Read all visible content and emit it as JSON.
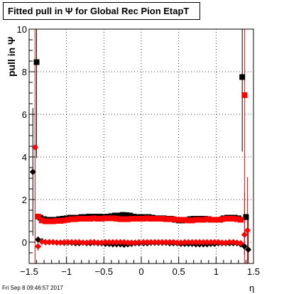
{
  "title": "Fitted pull in  Ψ  for Global Rec Pion EtapT",
  "footer": "Fri Sep  8 09:46:57 2017",
  "chart_data": {
    "type": "scatter",
    "title": "Fitted pull in  Ψ  for Global Rec Pion EtapT",
    "xlabel": "η",
    "ylabel": "pull in  Ψ",
    "xlim": [
      -1.5,
      1.5
    ],
    "ylim": [
      -1,
      10
    ],
    "xticks": [
      -1.5,
      -1,
      -0.5,
      0,
      0.5,
      1,
      1.5
    ],
    "xtick_labels": [
      "−1.5",
      "−1",
      "−0.5",
      "0",
      "0.5",
      "1",
      "1.5"
    ],
    "yticks": [
      0,
      2,
      4,
      6,
      8,
      10
    ],
    "ytick_labels": [
      "0",
      "2",
      "4",
      "6",
      "8",
      "10"
    ],
    "grid": true,
    "colors": {
      "black_series": "#000000",
      "red_series": "#ff0000"
    },
    "series": [
      {
        "color": "#000000",
        "marker": "square",
        "x": [
          -1.4,
          -1.35,
          -1.3,
          -1.25,
          -1.2,
          -1.15,
          -1.1,
          -1.05,
          -1.0,
          -0.95,
          -0.9,
          -0.85,
          -0.8,
          -0.75,
          -0.7,
          -0.65,
          -0.6,
          -0.55,
          -0.5,
          -0.45,
          -0.4,
          -0.35,
          -0.3,
          -0.25,
          -0.2,
          -0.15,
          -0.1,
          -0.05,
          0.0,
          0.05,
          0.1,
          0.15,
          0.2,
          0.25,
          0.3,
          0.35,
          0.4,
          0.45,
          0.5,
          0.55,
          0.6,
          0.65,
          0.7,
          0.75,
          0.8,
          0.85,
          0.9,
          0.95,
          1.0,
          1.05,
          1.1,
          1.15,
          1.2,
          1.25,
          1.3,
          1.35,
          1.4
        ],
        "y": [
          8.45,
          1.15,
          1.08,
          1.05,
          1.05,
          1.05,
          1.08,
          1.1,
          1.12,
          1.15,
          1.15,
          1.15,
          1.18,
          1.18,
          1.2,
          1.2,
          1.2,
          1.2,
          1.18,
          1.2,
          1.22,
          1.25,
          1.25,
          1.28,
          1.27,
          1.25,
          1.2,
          1.18,
          1.18,
          1.18,
          1.18,
          1.15,
          1.12,
          1.12,
          1.12,
          1.1,
          1.1,
          1.05,
          1.02,
          1.02,
          1.05,
          1.08,
          1.1,
          1.1,
          1.1,
          1.1,
          1.08,
          1.05,
          1.05,
          1.05,
          1.12,
          1.15,
          1.15,
          1.15,
          1.12,
          7.75,
          1.18
        ],
        "yerr": [
          4.5,
          0.15,
          0.1,
          0.08,
          0.08,
          0.08,
          0.08,
          0.08,
          0.08,
          0.08,
          0.08,
          0.08,
          0.08,
          0.08,
          0.08,
          0.08,
          0.08,
          0.08,
          0.08,
          0.08,
          0.08,
          0.08,
          0.08,
          0.08,
          0.08,
          0.08,
          0.08,
          0.08,
          0.08,
          0.08,
          0.08,
          0.08,
          0.08,
          0.08,
          0.08,
          0.08,
          0.08,
          0.08,
          0.08,
          0.08,
          0.08,
          0.08,
          0.08,
          0.08,
          0.08,
          0.08,
          0.08,
          0.08,
          0.08,
          0.08,
          0.08,
          0.08,
          0.08,
          0.08,
          0.1,
          3.5,
          0.15
        ]
      },
      {
        "color": "#000000",
        "marker": "diamond",
        "x": [
          -1.45,
          -1.38,
          -1.33,
          -1.28,
          -1.23,
          -1.18,
          -1.13,
          -1.08,
          -1.03,
          -0.98,
          -0.93,
          -0.88,
          -0.83,
          -0.78,
          -0.73,
          -0.68,
          -0.63,
          -0.58,
          -0.53,
          -0.48,
          -0.43,
          -0.38,
          -0.33,
          -0.28,
          -0.23,
          -0.18,
          -0.13,
          -0.08,
          -0.03,
          0.03,
          0.08,
          0.13,
          0.18,
          0.23,
          0.28,
          0.33,
          0.38,
          0.43,
          0.48,
          0.53,
          0.58,
          0.63,
          0.68,
          0.73,
          0.78,
          0.83,
          0.88,
          0.93,
          0.98,
          1.03,
          1.08,
          1.13,
          1.18,
          1.23,
          1.28,
          1.33,
          1.38,
          1.43
        ],
        "y": [
          3.3,
          0.12,
          0.05,
          0.0,
          0.0,
          0.0,
          -0.02,
          -0.02,
          -0.03,
          -0.02,
          -0.03,
          -0.05,
          -0.05,
          -0.03,
          -0.05,
          -0.05,
          -0.03,
          -0.05,
          -0.05,
          -0.08,
          -0.08,
          -0.1,
          -0.1,
          -0.1,
          -0.12,
          -0.1,
          -0.08,
          -0.05,
          -0.05,
          -0.05,
          -0.05,
          -0.03,
          -0.03,
          -0.03,
          -0.03,
          -0.03,
          -0.05,
          -0.05,
          -0.05,
          -0.08,
          -0.08,
          -0.08,
          -0.08,
          -0.1,
          -0.1,
          -0.1,
          -0.1,
          -0.08,
          -0.08,
          -0.05,
          -0.05,
          -0.05,
          -0.05,
          -0.05,
          -0.05,
          -0.1,
          -0.2,
          -0.35
        ],
        "yerr": [
          3.0,
          0.1,
          0.05,
          0.04,
          0.04,
          0.04,
          0.04,
          0.04,
          0.04,
          0.04,
          0.04,
          0.04,
          0.04,
          0.04,
          0.04,
          0.04,
          0.04,
          0.04,
          0.04,
          0.04,
          0.04,
          0.04,
          0.04,
          0.04,
          0.04,
          0.04,
          0.04,
          0.04,
          0.04,
          0.04,
          0.04,
          0.04,
          0.04,
          0.04,
          0.04,
          0.04,
          0.04,
          0.04,
          0.04,
          0.04,
          0.04,
          0.04,
          0.04,
          0.04,
          0.04,
          0.04,
          0.04,
          0.04,
          0.04,
          0.04,
          0.04,
          0.04,
          0.04,
          0.04,
          0.04,
          0.08,
          0.4,
          1.5
        ]
      },
      {
        "color": "#ff0000",
        "marker": "square",
        "x": [
          -1.38,
          -1.33,
          -1.28,
          -1.23,
          -1.18,
          -1.13,
          -1.08,
          -1.03,
          -0.98,
          -0.93,
          -0.88,
          -0.83,
          -0.78,
          -0.73,
          -0.68,
          -0.63,
          -0.58,
          -0.53,
          -0.48,
          -0.43,
          -0.38,
          -0.33,
          -0.28,
          -0.23,
          -0.18,
          -0.13,
          -0.08,
          -0.03,
          0.03,
          0.08,
          0.13,
          0.18,
          0.23,
          0.28,
          0.33,
          0.38,
          0.43,
          0.48,
          0.53,
          0.58,
          0.63,
          0.68,
          0.73,
          0.78,
          0.83,
          0.88,
          0.93,
          0.98,
          1.03,
          1.08,
          1.13,
          1.18,
          1.23,
          1.28,
          1.33,
          1.38
        ],
        "y": [
          1.2,
          1.02,
          0.98,
          0.98,
          0.98,
          1.0,
          1.0,
          1.02,
          1.05,
          1.08,
          1.08,
          1.1,
          1.1,
          1.1,
          1.1,
          1.12,
          1.1,
          1.1,
          1.12,
          1.12,
          1.12,
          1.1,
          1.08,
          1.08,
          1.08,
          1.1,
          1.1,
          1.1,
          1.1,
          1.12,
          1.1,
          1.1,
          1.1,
          1.1,
          1.08,
          1.08,
          1.08,
          1.05,
          1.05,
          1.05,
          1.02,
          1.02,
          1.05,
          1.05,
          1.05,
          1.08,
          1.05,
          1.05,
          1.05,
          1.08,
          1.1,
          1.1,
          1.1,
          1.08,
          1.05,
          6.9
        ],
        "yerr": [
          0.15,
          0.08,
          0.06,
          0.06,
          0.06,
          0.06,
          0.06,
          0.06,
          0.06,
          0.06,
          0.06,
          0.06,
          0.06,
          0.06,
          0.06,
          0.06,
          0.06,
          0.06,
          0.06,
          0.06,
          0.06,
          0.06,
          0.06,
          0.06,
          0.06,
          0.06,
          0.06,
          0.06,
          0.06,
          0.06,
          0.06,
          0.06,
          0.06,
          0.06,
          0.06,
          0.06,
          0.06,
          0.06,
          0.06,
          0.06,
          0.06,
          0.06,
          0.06,
          0.06,
          0.06,
          0.06,
          0.06,
          0.06,
          0.06,
          0.06,
          0.06,
          0.06,
          0.06,
          0.06,
          0.08,
          7.0
        ]
      },
      {
        "color": "#ff0000",
        "marker": "diamond",
        "x": [
          -1.42,
          -1.38,
          -1.33,
          -1.28,
          -1.23,
          -1.18,
          -1.13,
          -1.08,
          -1.03,
          -0.98,
          -0.93,
          -0.88,
          -0.83,
          -0.78,
          -0.73,
          -0.68,
          -0.63,
          -0.58,
          -0.53,
          -0.48,
          -0.43,
          -0.38,
          -0.33,
          -0.28,
          -0.23,
          -0.18,
          -0.13,
          -0.08,
          -0.03,
          0.03,
          0.08,
          0.13,
          0.18,
          0.23,
          0.28,
          0.33,
          0.38,
          0.43,
          0.48,
          0.53,
          0.58,
          0.63,
          0.68,
          0.73,
          0.78,
          0.83,
          0.88,
          0.93,
          0.98,
          1.03,
          1.08,
          1.13,
          1.18,
          1.23,
          1.28,
          1.33,
          1.38,
          1.42
        ],
        "y": [
          4.45,
          -0.2,
          0.02,
          0.0,
          0.0,
          0.0,
          -0.02,
          -0.02,
          0.0,
          0.0,
          0.0,
          0.0,
          0.0,
          -0.02,
          -0.02,
          0.0,
          0.0,
          -0.02,
          -0.02,
          0.0,
          0.0,
          0.0,
          0.0,
          0.0,
          0.0,
          -0.02,
          -0.02,
          -0.02,
          0.0,
          0.0,
          0.0,
          0.0,
          0.0,
          0.0,
          0.0,
          0.0,
          0.0,
          0.0,
          -0.02,
          -0.02,
          0.0,
          0.0,
          0.0,
          0.0,
          0.0,
          0.0,
          0.0,
          0.0,
          0.0,
          0.0,
          -0.02,
          -0.02,
          0.0,
          0.0,
          -0.02,
          -0.05,
          0.35,
          0.55
        ],
        "yerr": [
          6.5,
          0.2,
          0.04,
          0.04,
          0.04,
          0.04,
          0.04,
          0.04,
          0.04,
          0.04,
          0.04,
          0.04,
          0.04,
          0.04,
          0.04,
          0.04,
          0.04,
          0.04,
          0.04,
          0.04,
          0.04,
          0.04,
          0.04,
          0.04,
          0.04,
          0.04,
          0.04,
          0.04,
          0.04,
          0.04,
          0.04,
          0.04,
          0.04,
          0.04,
          0.04,
          0.04,
          0.04,
          0.04,
          0.04,
          0.04,
          0.04,
          0.04,
          0.04,
          0.04,
          0.04,
          0.04,
          0.04,
          0.04,
          0.04,
          0.04,
          0.04,
          0.04,
          0.04,
          0.04,
          0.04,
          0.05,
          2.0,
          2.5
        ]
      }
    ]
  }
}
